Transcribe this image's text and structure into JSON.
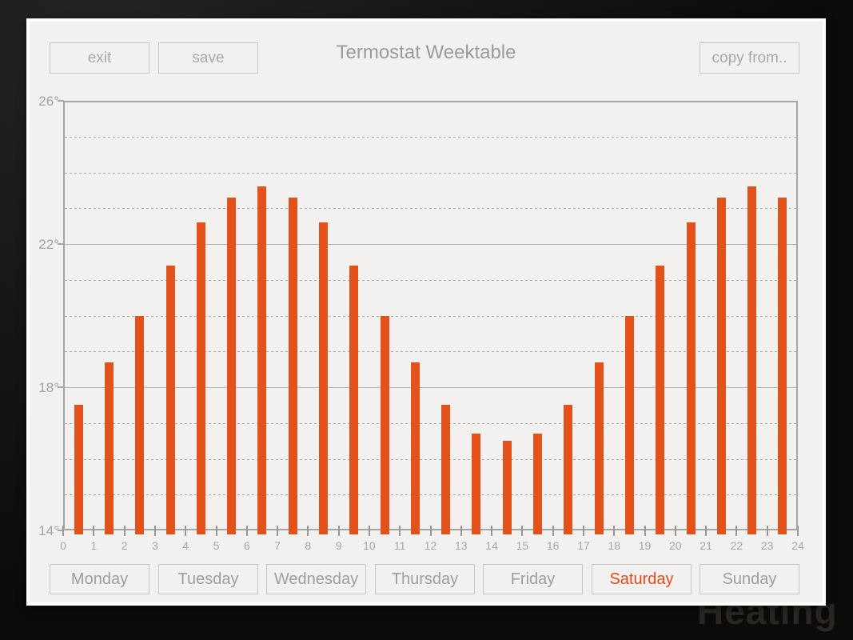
{
  "title": "Termostat Weektable",
  "toolbar": {
    "exit_label": "exit",
    "save_label": "save",
    "copy_from_label": "copy from.."
  },
  "day_tabs": [
    {
      "label": "Monday",
      "selected": false
    },
    {
      "label": "Tuesday",
      "selected": false
    },
    {
      "label": "Wednesday",
      "selected": false
    },
    {
      "label": "Thursday",
      "selected": false
    },
    {
      "label": "Friday",
      "selected": false
    },
    {
      "label": "Saturday",
      "selected": true
    },
    {
      "label": "Sunday",
      "selected": false
    }
  ],
  "background_watermark": "Heating",
  "colors": {
    "bar": "#e4521c",
    "selected_day_text": "#e8481c",
    "panel_background": "#f2f1f0",
    "panel_frame": "#fdfdfd",
    "muted_text": "#9e9e9e",
    "button_border": "#c6c6c6",
    "grid_dashed": "#acacac",
    "grid_solid": "#b0b0b0",
    "plot_border": "#a6a6a6",
    "screen_background": "#121212"
  },
  "chart_data": {
    "type": "bar",
    "title": "Termostat Weektable",
    "unit": "degrees Celsius",
    "x_hours": [
      0,
      1,
      2,
      3,
      4,
      5,
      6,
      7,
      8,
      9,
      10,
      11,
      12,
      13,
      14,
      15,
      16,
      17,
      18,
      19,
      20,
      21,
      22,
      23
    ],
    "values": [
      17.5,
      18.7,
      20.0,
      21.4,
      22.6,
      23.3,
      23.6,
      23.3,
      22.6,
      21.4,
      20.0,
      18.7,
      17.5,
      16.7,
      16.5,
      16.7,
      17.5,
      18.7,
      20.0,
      21.4,
      22.6,
      23.3,
      23.6,
      23.3
    ],
    "xlim": [
      0,
      24
    ],
    "ylim": [
      14,
      26
    ],
    "y_tick_labels": [
      {
        "value": 26,
        "label": "26°"
      },
      {
        "value": 22,
        "label": "22°"
      },
      {
        "value": 18,
        "label": "18°"
      },
      {
        "value": 14,
        "label": "14°"
      }
    ],
    "x_tick_labels": [
      "0",
      "1",
      "2",
      "3",
      "4",
      "5",
      "6",
      "7",
      "8",
      "9",
      "10",
      "11",
      "12",
      "13",
      "14",
      "15",
      "16",
      "17",
      "18",
      "19",
      "20",
      "21",
      "22",
      "23",
      "24"
    ],
    "gridline_step_degrees": 1,
    "solid_gridlines_at": [
      26,
      22,
      18,
      14
    ],
    "grid": true,
    "legend_position": "none"
  }
}
